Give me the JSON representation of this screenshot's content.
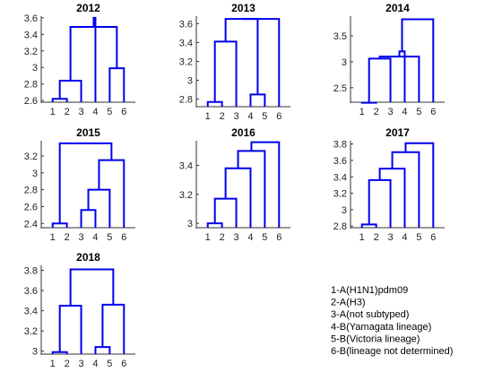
{
  "colors": {
    "branch": "#0000ee",
    "axis": "#333333",
    "text": "#000000"
  },
  "chart_data": [
    {
      "type": "dendrogram",
      "title": "2012",
      "leaves": [
        "1",
        "2",
        "3",
        "4",
        "5",
        "6"
      ],
      "ylim": [
        2.58,
        3.62
      ],
      "yticks": [
        2.6,
        2.8,
        3,
        3.2,
        3.4,
        3.6
      ],
      "ytick_labels": [
        "2.6",
        "2.8",
        "3",
        "3.2",
        "3.4",
        "3.6"
      ],
      "merges": [
        [
          1,
          2,
          2.62
        ],
        [
          7,
          3,
          2.84
        ],
        [
          5,
          6,
          2.99
        ],
        [
          8,
          9,
          3.49
        ],
        [
          10,
          4,
          3.6
        ]
      ]
    },
    {
      "type": "dendrogram",
      "title": "2013",
      "leaves": [
        "1",
        "2",
        "3",
        "4",
        "5",
        "6"
      ],
      "ylim": [
        2.72,
        3.68
      ],
      "yticks": [
        2.8,
        3,
        3.2,
        3.4,
        3.6
      ],
      "ytick_labels": [
        "2.8",
        "3",
        "3.2",
        "3.4",
        "3.6"
      ],
      "merges": [
        [
          1,
          2,
          2.77
        ],
        [
          4,
          5,
          2.85
        ],
        [
          7,
          3,
          3.41
        ],
        [
          9,
          8,
          3.65
        ],
        [
          10,
          6,
          3.65
        ]
      ]
    },
    {
      "type": "dendrogram",
      "title": "2014",
      "leaves": [
        "1",
        "2",
        "3",
        "4",
        "5",
        "6"
      ],
      "ylim": [
        2.22,
        3.88
      ],
      "yticks": [
        2.5,
        3,
        3.5
      ],
      "ytick_labels": [
        "2.5",
        "3",
        "3.5"
      ],
      "merges": [
        [
          1,
          2,
          2.21
        ],
        [
          7,
          3,
          3.06
        ],
        [
          8,
          5,
          3.1
        ],
        [
          9,
          4,
          3.2
        ],
        [
          10,
          6,
          3.82
        ]
      ]
    },
    {
      "type": "dendrogram",
      "title": "2015",
      "leaves": [
        "1",
        "2",
        "3",
        "4",
        "5",
        "6"
      ],
      "ylim": [
        2.35,
        3.38
      ],
      "yticks": [
        2.4,
        2.6,
        2.8,
        3,
        3.2
      ],
      "ytick_labels": [
        "2.4",
        "2.6",
        "2.8",
        "3",
        "3.2"
      ],
      "merges": [
        [
          1,
          2,
          2.4
        ],
        [
          3,
          4,
          2.56
        ],
        [
          8,
          5,
          2.8
        ],
        [
          9,
          6,
          3.15
        ],
        [
          7,
          10,
          3.35
        ]
      ]
    },
    {
      "type": "dendrogram",
      "title": "2016",
      "leaves": [
        "1",
        "2",
        "3",
        "4",
        "5",
        "6"
      ],
      "ylim": [
        2.97,
        3.57
      ],
      "yticks": [
        3,
        3.2,
        3.4
      ],
      "ytick_labels": [
        "3",
        "3.2",
        "3.4"
      ],
      "merges": [
        [
          1,
          2,
          3.0
        ],
        [
          7,
          3,
          3.17
        ],
        [
          8,
          4,
          3.38
        ],
        [
          9,
          5,
          3.5
        ],
        [
          10,
          6,
          3.56
        ]
      ]
    },
    {
      "type": "dendrogram",
      "title": "2017",
      "leaves": [
        "1",
        "2",
        "3",
        "4",
        "5",
        "6"
      ],
      "ylim": [
        2.78,
        3.84
      ],
      "yticks": [
        2.8,
        3,
        3.2,
        3.4,
        3.6,
        3.8
      ],
      "ytick_labels": [
        "2.8",
        "3",
        "3.2",
        "3.4",
        "3.6",
        "3.8"
      ],
      "merges": [
        [
          1,
          2,
          2.82
        ],
        [
          7,
          3,
          3.36
        ],
        [
          8,
          4,
          3.5
        ],
        [
          9,
          5,
          3.7
        ],
        [
          10,
          6,
          3.81
        ]
      ]
    },
    {
      "type": "dendrogram",
      "title": "2018",
      "leaves": [
        "1",
        "2",
        "3",
        "4",
        "5",
        "6"
      ],
      "ylim": [
        2.97,
        3.85
      ],
      "yticks": [
        3,
        3.2,
        3.4,
        3.6,
        3.8
      ],
      "ytick_labels": [
        "3",
        "3.2",
        "3.4",
        "3.6",
        "3.8"
      ],
      "merges": [
        [
          1,
          2,
          2.99
        ],
        [
          4,
          5,
          3.04
        ],
        [
          7,
          3,
          3.45
        ],
        [
          8,
          6,
          3.46
        ],
        [
          9,
          10,
          3.81
        ]
      ]
    }
  ],
  "legend": [
    "1-A(H1N1)pdm09",
    "2-A(H3)",
    "3-A(not subtyped)",
    "4-B(Yamagata lineage)",
    "5-B(Victoria lineage)",
    "6-B(lineage not determined)"
  ]
}
